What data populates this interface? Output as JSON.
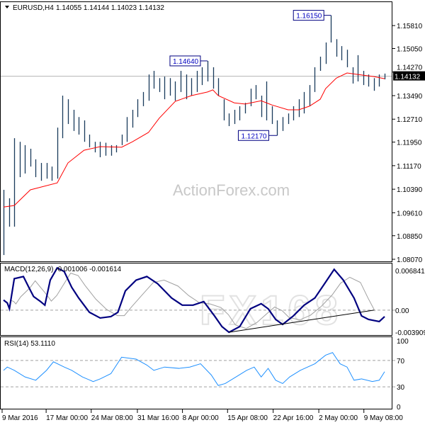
{
  "header": {
    "symbol": "EURUSD,H4",
    "ohlc": "1.14055 1.14144 1.14023 1.14132"
  },
  "watermark": "ActionForex.com",
  "logo_watermark": "FX168",
  "colors": {
    "bars": "#1a3a5c",
    "ma": "#ff0000",
    "macd": "#000080",
    "signal": "#a0a0a0",
    "rsi": "#1e90ff",
    "label_border": "#000080"
  },
  "chart_data": [
    {
      "type": "ohlc-bar",
      "panel": "price",
      "ylim": [
        1.08,
        1.1661
      ],
      "y_ticks": [
        "1.15810",
        "1.15050",
        "1.14270",
        "1.13490",
        "1.12710",
        "1.11950",
        "1.11170",
        "1.10390",
        "1.09610",
        "1.08850",
        "1.08070"
      ],
      "current_price": "1.14132",
      "bars_high_low": [
        [
          1.1037,
          1.0821
        ],
        [
          1.1009,
          1.0915
        ],
        [
          1.1208,
          1.0915
        ],
        [
          1.1196,
          1.1079
        ],
        [
          1.1185,
          1.1091
        ],
        [
          1.1173,
          1.1114
        ],
        [
          1.1138,
          1.1079
        ],
        [
          1.1126,
          1.1067
        ],
        [
          1.1126,
          1.1074
        ],
        [
          1.1114,
          1.1067
        ],
        [
          1.1243,
          1.1074
        ],
        [
          1.1349,
          1.1208
        ],
        [
          1.1337,
          1.1255
        ],
        [
          1.1302,
          1.1232
        ],
        [
          1.1278,
          1.122
        ],
        [
          1.1267,
          1.1196
        ],
        [
          1.122,
          1.1178
        ],
        [
          1.1196,
          1.1161
        ],
        [
          1.1196,
          1.1145
        ],
        [
          1.1193,
          1.115
        ],
        [
          1.1185,
          1.115
        ],
        [
          1.1185,
          1.1161
        ],
        [
          1.122,
          1.1185
        ],
        [
          1.1278,
          1.1196
        ],
        [
          1.1302,
          1.1243
        ],
        [
          1.1337,
          1.1278
        ],
        [
          1.1361,
          1.1314
        ],
        [
          1.1419,
          1.1332
        ],
        [
          1.1431,
          1.1372
        ],
        [
          1.1407,
          1.1361
        ],
        [
          1.1412,
          1.1337
        ],
        [
          1.1407,
          1.1349
        ],
        [
          1.1396,
          1.1332
        ],
        [
          1.1431,
          1.1361
        ],
        [
          1.1419,
          1.1337
        ],
        [
          1.1407,
          1.1349
        ],
        [
          1.1431,
          1.1361
        ],
        [
          1.1443,
          1.1384
        ],
        [
          1.1464,
          1.1396
        ],
        [
          1.1443,
          1.1372
        ],
        [
          1.1407,
          1.1349
        ],
        [
          1.1337,
          1.1267
        ],
        [
          1.129,
          1.1248
        ],
        [
          1.1302,
          1.1255
        ],
        [
          1.1314,
          1.1267
        ],
        [
          1.1325,
          1.129
        ],
        [
          1.1372,
          1.1314
        ],
        [
          1.1384,
          1.1337
        ],
        [
          1.1349,
          1.1278
        ],
        [
          1.1396,
          1.1267
        ],
        [
          1.1314,
          1.1255
        ],
        [
          1.1267,
          1.1217
        ],
        [
          1.1278,
          1.1232
        ],
        [
          1.129,
          1.1255
        ],
        [
          1.1314,
          1.1267
        ],
        [
          1.1337,
          1.1278
        ],
        [
          1.1361,
          1.129
        ],
        [
          1.1384,
          1.1314
        ],
        [
          1.1443,
          1.1361
        ],
        [
          1.1478,
          1.1431
        ],
        [
          1.1525,
          1.1454
        ],
        [
          1.1615,
          1.1525
        ],
        [
          1.1536,
          1.1478
        ],
        [
          1.1513,
          1.1466
        ],
        [
          1.1501,
          1.1443
        ],
        [
          1.1443,
          1.1389
        ],
        [
          1.1483,
          1.1396
        ],
        [
          1.1431,
          1.1384
        ],
        [
          1.1419,
          1.1379
        ],
        [
          1.1407,
          1.1365
        ],
        [
          1.1419,
          1.1379
        ],
        [
          1.1422,
          1.1403
        ]
      ],
      "moving_average": [
        [
          0,
          1.098
        ],
        [
          2,
          1.0985
        ],
        [
          5,
          1.1037
        ],
        [
          10,
          1.106
        ],
        [
          12,
          1.1126
        ],
        [
          15,
          1.1168
        ],
        [
          18,
          1.118
        ],
        [
          22,
          1.1178
        ],
        [
          24,
          1.1196
        ],
        [
          27,
          1.1227
        ],
        [
          29,
          1.1274
        ],
        [
          32,
          1.133
        ],
        [
          35,
          1.1349
        ],
        [
          38,
          1.1361
        ],
        [
          39,
          1.1368
        ],
        [
          40,
          1.1349
        ],
        [
          43,
          1.1325
        ],
        [
          45,
          1.1321
        ],
        [
          48,
          1.1332
        ],
        [
          50,
          1.1318
        ],
        [
          53,
          1.1302
        ],
        [
          55,
          1.1302
        ],
        [
          57,
          1.1314
        ],
        [
          59,
          1.1337
        ],
        [
          60,
          1.1372
        ],
        [
          62,
          1.1407
        ],
        [
          64,
          1.1424
        ],
        [
          66,
          1.1419
        ],
        [
          69,
          1.1412
        ],
        [
          71,
          1.1405
        ]
      ],
      "annotations": [
        {
          "label": "1.14640",
          "bar": 38,
          "price": 1.1464
        },
        {
          "label": "1.16150",
          "bar": 61,
          "price": 1.1615
        },
        {
          "label": "1.12170",
          "bar": 51,
          "price": 1.1217
        }
      ]
    },
    {
      "type": "line",
      "panel": "macd",
      "title": "MACD(12,26,9) -0.001006 -0.001614",
      "ylim": [
        -0.0039,
        0.0073
      ],
      "y_ticks": [
        {
          "label": "0.006841",
          "value": 0.006841
        },
        {
          "label": "0.00",
          "value": 0
        },
        {
          "label": "-0.003909",
          "value": -0.003909
        }
      ],
      "macd": [
        [
          0,
          0.00157
        ],
        [
          0.7,
          0.00112
        ],
        [
          1.1,
          0.00022
        ],
        [
          2,
          0.00493
        ],
        [
          3.7,
          0.00526
        ],
        [
          4.7,
          0.00358
        ],
        [
          5.6,
          0.00213
        ],
        [
          6.9,
          0.00134
        ],
        [
          7.7,
          0.00078
        ],
        [
          8.7,
          0.0047
        ],
        [
          10,
          0.00661
        ],
        [
          11.3,
          0.00605
        ],
        [
          12.7,
          0.00358
        ],
        [
          14,
          0.0019
        ],
        [
          16,
          -0.00034
        ],
        [
          18,
          -0.00123
        ],
        [
          20,
          -0.00101
        ],
        [
          21.3,
          -0.00034
        ],
        [
          22.7,
          0.00302
        ],
        [
          24.7,
          0.0047
        ],
        [
          26.7,
          0.00526
        ],
        [
          28.7,
          0.00414
        ],
        [
          31.3,
          0.0019
        ],
        [
          33.3,
          0.00078
        ],
        [
          35.3,
          0.00078
        ],
        [
          37.3,
          0.00134
        ],
        [
          39.3,
          -0.0009
        ],
        [
          40.7,
          -0.00258
        ],
        [
          42,
          -0.00347
        ],
        [
          44,
          -0.00258
        ],
        [
          46,
          0.00022
        ],
        [
          48,
          0.00101
        ],
        [
          49.3,
          0.00022
        ],
        [
          50.7,
          -0.00146
        ],
        [
          52,
          -0.00224
        ],
        [
          54,
          -0.0009
        ],
        [
          56,
          0.00078
        ],
        [
          58,
          0.0019
        ],
        [
          60,
          0.00437
        ],
        [
          61.6,
          0.00638
        ],
        [
          63.3,
          0.0047
        ],
        [
          65.3,
          0.0019
        ],
        [
          66.7,
          -0.0009
        ],
        [
          68,
          -0.00146
        ],
        [
          70,
          -0.00179
        ],
        [
          71,
          -0.00101
        ]
      ],
      "trendline": [
        [
          42,
          -0.00347
        ],
        [
          69,
          0.0
        ]
      ]
    },
    {
      "type": "line",
      "panel": "rsi",
      "title": "RSI(14) 53.1110",
      "ylim": [
        0,
        100
      ],
      "y_ticks": [
        "100",
        "70",
        "30",
        "0"
      ],
      "levels": [
        70,
        30
      ],
      "rsi": [
        [
          0,
          55
        ],
        [
          0.7,
          60
        ],
        [
          2,
          55
        ],
        [
          4,
          45
        ],
        [
          6,
          40
        ],
        [
          8,
          55
        ],
        [
          9.3,
          68
        ],
        [
          11.3,
          60
        ],
        [
          12.7,
          55
        ],
        [
          14.7,
          45
        ],
        [
          16.7,
          38
        ],
        [
          18,
          42
        ],
        [
          20,
          50
        ],
        [
          22,
          75
        ],
        [
          24.7,
          72
        ],
        [
          26.7,
          63
        ],
        [
          28,
          55
        ],
        [
          30,
          60
        ],
        [
          32.7,
          58
        ],
        [
          34.7,
          60
        ],
        [
          36.7,
          65
        ],
        [
          38.7,
          48
        ],
        [
          40,
          32
        ],
        [
          41.3,
          35
        ],
        [
          43.3,
          45
        ],
        [
          45.3,
          55
        ],
        [
          46.7,
          60
        ],
        [
          48,
          45
        ],
        [
          49.3,
          58
        ],
        [
          50.7,
          40
        ],
        [
          52,
          35
        ],
        [
          53.3,
          45
        ],
        [
          55.3,
          55
        ],
        [
          58,
          65
        ],
        [
          60,
          78
        ],
        [
          61.3,
          82
        ],
        [
          62.7,
          65
        ],
        [
          64,
          60
        ],
        [
          65.3,
          40
        ],
        [
          66.7,
          42
        ],
        [
          68.7,
          38
        ],
        [
          70,
          40
        ],
        [
          71,
          53
        ]
      ]
    }
  ],
  "x_ticks": [
    {
      "label": "9 Mar 2016",
      "bar": 0
    },
    {
      "label": "17 Mar 00:00",
      "bar": 8.2
    },
    {
      "label": "24 Mar 08:00",
      "bar": 16.6
    },
    {
      "label": "31 Mar 16:00",
      "bar": 25.2
    },
    {
      "label": "8 Apr 00:00",
      "bar": 33.6
    },
    {
      "label": "15 Apr 08:00",
      "bar": 42
    },
    {
      "label": "22 Apr 16:00",
      "bar": 50.5
    },
    {
      "label": "2 May 00:00",
      "bar": 59
    },
    {
      "label": "9 May 08:00",
      "bar": 67.4
    }
  ]
}
